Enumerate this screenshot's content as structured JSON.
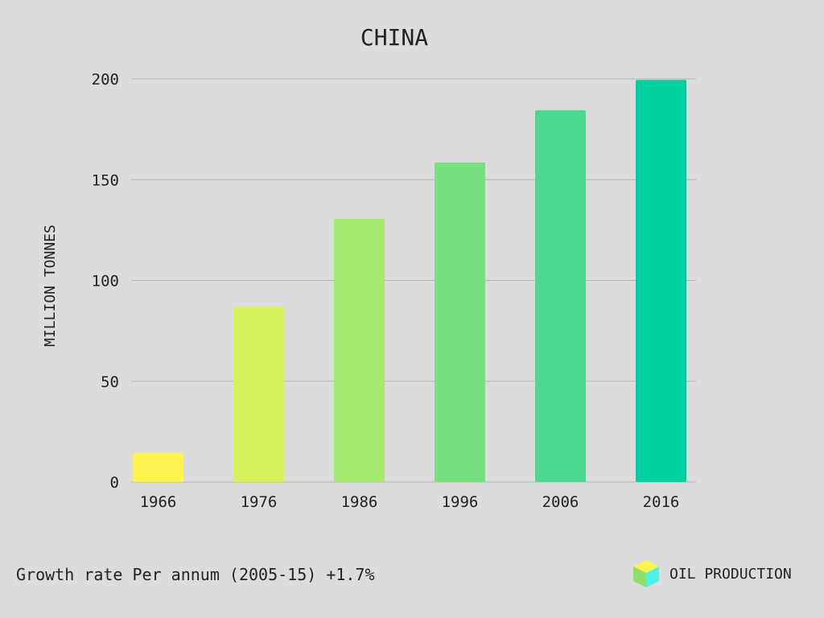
{
  "chart_data": {
    "type": "bar",
    "title": "CHINA",
    "ylabel": "MILLION TONNES",
    "xlabel": "",
    "categories": [
      "1966",
      "1976",
      "1986",
      "1996",
      "2006",
      "2016"
    ],
    "values": [
      14.5,
      87,
      130.5,
      158.5,
      184.5,
      199.5
    ],
    "ylim": [
      0,
      200
    ],
    "yticks": [
      "0",
      "50",
      "100",
      "150",
      "200"
    ],
    "bar_colors": [
      "#fff44f",
      "#d4f25c",
      "#a6ea70",
      "#78e07c",
      "#4ed990",
      "#00cf9f"
    ],
    "grid": true
  },
  "footer": {
    "note": "Growth rate Per annum (2005-15) +1.7%"
  },
  "legend": {
    "label": "OIL PRODUCTION",
    "icon": "cube-icon",
    "icon_colors": [
      "#fff44f",
      "#8ee06a",
      "#4ff0e6"
    ]
  },
  "colors": {
    "background": "#dcdcdc",
    "grid": "#b5b5b5",
    "text": "#222222"
  }
}
